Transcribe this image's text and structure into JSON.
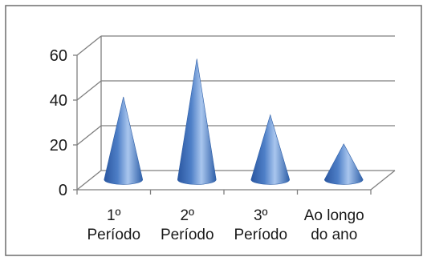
{
  "chart_data": {
    "type": "bar",
    "bar_shape": "3d-cone",
    "title": "",
    "xlabel": "",
    "ylabel": "",
    "categories": [
      [
        "1º",
        "Período"
      ],
      [
        "2º",
        "Período"
      ],
      [
        "3º",
        "Período"
      ],
      [
        "Ao longo",
        "do ano"
      ]
    ],
    "values": [
      38,
      55,
      30,
      17
    ],
    "ylim": [
      0,
      60
    ],
    "yticks": [
      "0",
      "20",
      "40",
      "60"
    ],
    "grid": true,
    "legend": "none",
    "colors": {
      "cone_dark": "#2e5fa8",
      "cone_mid": "#7aa3da",
      "cone_light": "#a9c6ee",
      "grid": "#7f7f7f",
      "frame": "#6d6d6d"
    }
  }
}
